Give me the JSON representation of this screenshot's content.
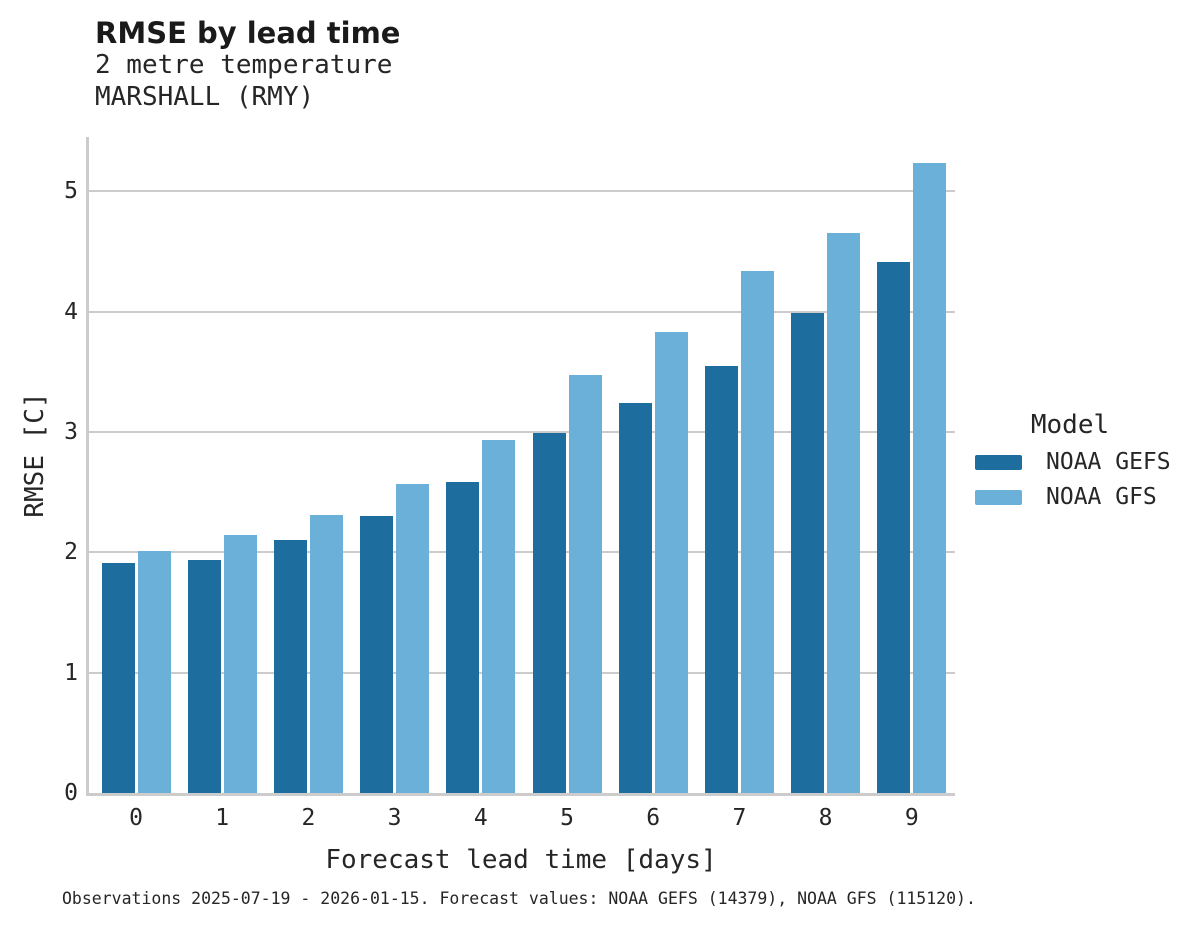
{
  "header": {
    "title": "RMSE by lead time",
    "subtitle1": "2 metre temperature",
    "subtitle2": "MARSHALL (RMY)"
  },
  "chart_data": {
    "type": "bar",
    "title": "RMSE by lead time",
    "subtitle": [
      "2 metre temperature",
      "MARSHALL (RMY)"
    ],
    "categories": [
      "0",
      "1",
      "2",
      "3",
      "4",
      "5",
      "6",
      "7",
      "8",
      "9"
    ],
    "series": [
      {
        "name": "NOAA GEFS",
        "color": "#1d6d9e",
        "values": [
          1.91,
          1.94,
          2.1,
          2.3,
          2.58,
          2.99,
          3.24,
          3.55,
          3.99,
          4.41
        ]
      },
      {
        "name": "NOAA GFS",
        "color": "#6bb0d8",
        "values": [
          2.01,
          2.14,
          2.31,
          2.57,
          2.93,
          3.47,
          3.83,
          4.34,
          4.65,
          5.23
        ]
      }
    ],
    "xlabel": "Forecast lead time [days]",
    "ylabel": "RMSE [C]",
    "ylim": [
      0,
      5.45
    ],
    "yticks": [
      0,
      1,
      2,
      3,
      4,
      5
    ],
    "grid": true,
    "legend_title": "Model",
    "legend_position": "right"
  },
  "footer": {
    "caption": "Observations 2025-07-19 - 2026-01-15. Forecast values: NOAA GEFS (14379), NOAA GFS (115120)."
  },
  "colors": {
    "gefs": "#1d6d9e",
    "gfs": "#6bb0d8",
    "grid": "#cccccc",
    "text": "#262626"
  }
}
